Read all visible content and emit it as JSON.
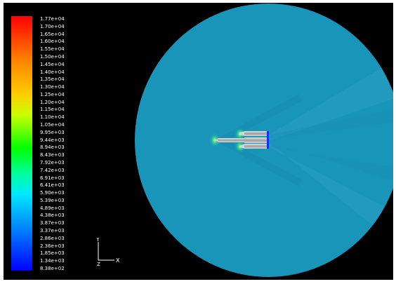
{
  "colormap": {
    "labels": [
      "1.77e+04",
      "1.70e+04",
      "1.65e+04",
      "1.60e+04",
      "1.55e+04",
      "1.50e+04",
      "1.45e+04",
      "1.40e+04",
      "1.35e+04",
      "1.30e+04",
      "1.25e+04",
      "1.20e+04",
      "1.15e+04",
      "1.10e+04",
      "1.05e+04",
      "9.95e+03",
      "9.44e+03",
      "8.94e+03",
      "8.43e+03",
      "7.92e+03",
      "7.42e+03",
      "6.91e+03",
      "6.41e+03",
      "5.90e+03",
      "5.39e+03",
      "4.89e+03",
      "4.38e+03",
      "3.87e+03",
      "3.37e+03",
      "2.86e+03",
      "2.36e+03",
      "1.85e+03",
      "1.34e+03",
      "8.38e+02"
    ],
    "colors": {
      "top": "#ff0000",
      "bottom": "#0000ff"
    }
  },
  "axes": {
    "y_label": "Y",
    "x_label": "X"
  },
  "domain_color": "#1a95ba",
  "background_color": "#000000"
}
